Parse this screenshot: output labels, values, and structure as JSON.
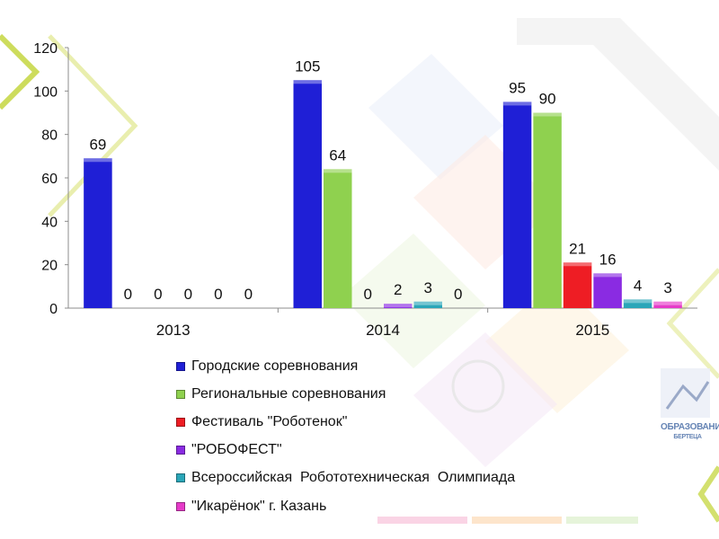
{
  "chart_data": {
    "type": "bar",
    "categories": [
      "2013",
      "2014",
      "2015"
    ],
    "ylim": [
      0,
      120
    ],
    "yticks": [
      0,
      20,
      40,
      60,
      80,
      100,
      120
    ],
    "grid": false,
    "legend_position": "bottom",
    "series": [
      {
        "name": "Городские соревнования",
        "values": [
          69,
          105,
          95
        ],
        "color": "#1f1fd6"
      },
      {
        "name": "Региональные соревнования",
        "values": [
          0,
          64,
          90
        ],
        "color": "#8fd14f"
      },
      {
        "name": "Фестиваль \"Роботенок\"",
        "values": [
          0,
          0,
          21
        ],
        "color": "#ee1d24"
      },
      {
        "name": "\"РОБОФЕСТ\"",
        "values": [
          0,
          2,
          16
        ],
        "color": "#8a2be2"
      },
      {
        "name": "Всероссийская  Робототехническая  Олимпиада",
        "values": [
          0,
          3,
          4
        ],
        "color": "#2aa6b8"
      },
      {
        "name": "\"Икарёнок\" г. Казань",
        "values": [
          0,
          0,
          3
        ],
        "color": "#e63bc9"
      }
    ]
  },
  "logo": {
    "text": "ОБРАЗОВАНИЕ",
    "subtext": "БЕРТЕЦА"
  }
}
